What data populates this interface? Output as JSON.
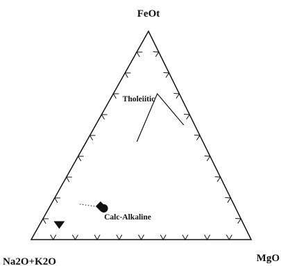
{
  "chart_data": {
    "type": "scatter",
    "subtype": "AFM ternary diagram",
    "title": "",
    "apices": {
      "top": "FeOt",
      "bottom_left": "Na2O+K2O",
      "bottom_right": "MgO"
    },
    "fields": [
      {
        "name": "Tholeiitic",
        "position": "upper"
      },
      {
        "name": "Calc-Alkaline",
        "position": "lower"
      }
    ],
    "boundary_line": {
      "description": "Tholeiitic / Calc-Alkaline dividing line",
      "points_AFM": [
        [
          30,
          47,
          23
        ],
        [
          10,
          70,
          20
        ],
        [
          5,
          55,
          40
        ]
      ]
    },
    "series": [
      {
        "marker": "diamond",
        "points_AFM": [
          [
            61,
            16,
            23
          ]
        ]
      },
      {
        "marker": "circle",
        "points_AFM": [
          [
            60,
            15,
            25
          ]
        ]
      },
      {
        "marker": "triangle-down",
        "points_AFM": [
          [
            84,
            7,
            9
          ]
        ]
      }
    ],
    "tick_marks": "present on all three sides, no numeric labels",
    "grid": false,
    "legend": "none",
    "colors": {
      "ink": "#111111",
      "background": "#ffffff"
    }
  }
}
